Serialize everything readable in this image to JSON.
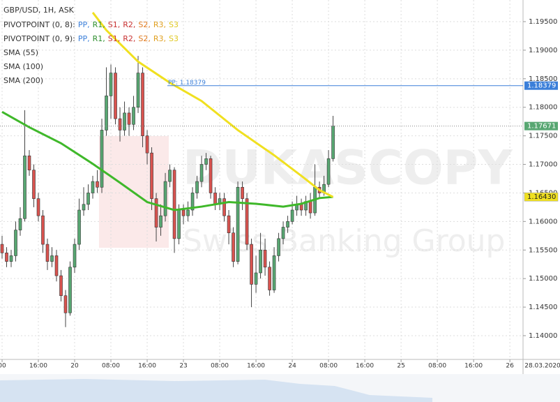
{
  "chart_data": {
    "type": "candlestick",
    "title": "GBP/USD, 1H, ASK",
    "indicators": [
      {
        "name": "PIVOTPOINT (0, 8):",
        "parts": [
          {
            "text": "PP,",
            "color": "#3b7fd9"
          },
          {
            "text": "R1,",
            "color": "#2f8f2f"
          },
          {
            "text": "S1,",
            "color": "#c83232"
          },
          {
            "text": "R2,",
            "color": "#c83232"
          },
          {
            "text": "S2,",
            "color": "#e07b20"
          },
          {
            "text": "R3,",
            "color": "#e0a020"
          },
          {
            "text": "S3",
            "color": "#e0c820"
          }
        ]
      },
      {
        "name": "PIVOTPOINT (0, 9):",
        "parts": [
          {
            "text": "PP,",
            "color": "#3b7fd9"
          },
          {
            "text": "R1,",
            "color": "#2f8f2f"
          },
          {
            "text": "S1,",
            "color": "#c83232"
          },
          {
            "text": "R2,",
            "color": "#c83232"
          },
          {
            "text": "S2,",
            "color": "#e07b20"
          },
          {
            "text": "R3,",
            "color": "#e0a020"
          },
          {
            "text": "S3",
            "color": "#e0c820"
          }
        ]
      }
    ],
    "watermark": [
      "DUKASCOPY",
      "Swiss Banking Group"
    ],
    "x": [
      0,
      1,
      2,
      3,
      4,
      5,
      6,
      7,
      8,
      9,
      10,
      11,
      12,
      13,
      14,
      15,
      16,
      17,
      18,
      19,
      20,
      21,
      22,
      23,
      24,
      25,
      26,
      27,
      28,
      29,
      30,
      31,
      32,
      33,
      34,
      35,
      36,
      37,
      38,
      39,
      40,
      41,
      42,
      43,
      44,
      45,
      46,
      47,
      48,
      49,
      50,
      51,
      52,
      53,
      54,
      55,
      56,
      57,
      58,
      59,
      60,
      61,
      62,
      63,
      64,
      65,
      66,
      67,
      68,
      69,
      70,
      71,
      72,
      73
    ],
    "open": [
      1.156,
      1.1545,
      1.153,
      1.154,
      1.1585,
      1.1605,
      1.1715,
      1.169,
      1.164,
      1.161,
      1.156,
      1.153,
      1.154,
      1.1505,
      1.147,
      1.144,
      1.152,
      1.156,
      1.162,
      1.163,
      1.165,
      1.167,
      1.166,
      1.176,
      1.182,
      1.186,
      1.178,
      1.176,
      1.179,
      1.177,
      1.18,
      1.186,
      1.175,
      1.172,
      1.164,
      1.159,
      1.161,
      1.167,
      1.169,
      1.157,
      1.162,
      1.161,
      1.162,
      1.165,
      1.167,
      1.17,
      1.171,
      1.165,
      1.163,
      1.164,
      1.161,
      1.158,
      1.153,
      1.166,
      1.164,
      1.156,
      1.149,
      1.151,
      1.155,
      1.152,
      1.148,
      1.154,
      1.157,
      1.159,
      1.16,
      1.162,
      1.163,
      1.162,
      1.1635,
      1.1615,
      1.166,
      1.165,
      1.1665,
      1.171
    ],
    "high": [
      1.1575,
      1.1555,
      1.155,
      1.16,
      1.1625,
      1.1795,
      1.1725,
      1.17,
      1.165,
      1.162,
      1.157,
      1.1555,
      1.155,
      1.1515,
      1.148,
      1.153,
      1.157,
      1.164,
      1.166,
      1.1665,
      1.168,
      1.169,
      1.178,
      1.187,
      1.1875,
      1.187,
      1.18,
      1.181,
      1.18,
      1.182,
      1.189,
      1.187,
      1.176,
      1.173,
      1.165,
      1.163,
      1.1685,
      1.17,
      1.1695,
      1.163,
      1.163,
      1.1635,
      1.166,
      1.168,
      1.1715,
      1.172,
      1.1715,
      1.166,
      1.165,
      1.165,
      1.162,
      1.159,
      1.167,
      1.167,
      1.165,
      1.157,
      1.154,
      1.158,
      1.157,
      1.153,
      1.1555,
      1.158,
      1.16,
      1.161,
      1.1635,
      1.1645,
      1.164,
      1.1645,
      1.165,
      1.17,
      1.167,
      1.168,
      1.1725,
      1.1785
    ],
    "low": [
      1.1535,
      1.152,
      1.152,
      1.153,
      1.1575,
      1.16,
      1.168,
      1.1625,
      1.16,
      1.1545,
      1.1515,
      1.152,
      1.1495,
      1.146,
      1.1415,
      1.1435,
      1.151,
      1.155,
      1.161,
      1.162,
      1.164,
      1.165,
      1.165,
      1.175,
      1.178,
      1.177,
      1.174,
      1.175,
      1.175,
      1.176,
      1.179,
      1.173,
      1.17,
      1.162,
      1.1565,
      1.1575,
      1.16,
      1.166,
      1.1545,
      1.156,
      1.1595,
      1.16,
      1.161,
      1.164,
      1.166,
      1.169,
      1.164,
      1.162,
      1.162,
      1.16,
      1.156,
      1.152,
      1.1525,
      1.162,
      1.155,
      1.145,
      1.1475,
      1.15,
      1.1505,
      1.147,
      1.1475,
      1.153,
      1.156,
      1.158,
      1.1595,
      1.161,
      1.161,
      1.161,
      1.1605,
      1.161,
      1.164,
      1.1645,
      1.166,
      1.1705
    ],
    "close": [
      1.1545,
      1.153,
      1.154,
      1.1585,
      1.1605,
      1.1715,
      1.169,
      1.164,
      1.161,
      1.156,
      1.153,
      1.154,
      1.1505,
      1.147,
      1.144,
      1.152,
      1.156,
      1.162,
      1.163,
      1.165,
      1.167,
      1.166,
      1.176,
      1.182,
      1.186,
      1.178,
      1.176,
      1.179,
      1.177,
      1.18,
      1.186,
      1.175,
      1.172,
      1.164,
      1.159,
      1.161,
      1.167,
      1.169,
      1.157,
      1.162,
      1.161,
      1.162,
      1.165,
      1.167,
      1.17,
      1.171,
      1.165,
      1.163,
      1.164,
      1.161,
      1.158,
      1.153,
      1.166,
      1.164,
      1.156,
      1.149,
      1.151,
      1.155,
      1.152,
      1.148,
      1.154,
      1.157,
      1.159,
      1.16,
      1.162,
      1.163,
      1.162,
      1.1635,
      1.1615,
      1.166,
      1.165,
      1.1665,
      1.171,
      1.17671
    ],
    "up_color": "#58a772",
    "down_color": "#d9534f",
    "series": [
      {
        "name": "SMA (55)",
        "color": "#3fb82a",
        "x": [
          0,
          6,
          13,
          20,
          26,
          32,
          38,
          44,
          50,
          56,
          62,
          66,
          70,
          73
        ],
        "values": [
          1.1792,
          1.1765,
          1.1737,
          1.1701,
          1.1668,
          1.1634,
          1.162,
          1.1626,
          1.1634,
          1.1631,
          1.1626,
          1.1631,
          1.1641,
          1.1643
        ]
      },
      {
        "name": "SMA (100)",
        "color": "#f0e020",
        "x": [
          20,
          23,
          30,
          37,
          44,
          52,
          60,
          66,
          70,
          73
        ],
        "values": [
          1.1966,
          1.1935,
          1.188,
          1.1843,
          1.1811,
          1.176,
          1.1716,
          1.168,
          1.1655,
          1.1643
        ]
      },
      {
        "name": "SMA (200)",
        "color": "#e03030",
        "x": [],
        "values": []
      }
    ],
    "pivot": {
      "value": 1.18379,
      "label": "PP: 1.18379"
    },
    "last_price": 1.17671,
    "sma_tag": {
      "value": 1.1643,
      "label": "1.16430"
    },
    "ylim": [
      1.13584,
      1.19879
    ],
    "yticks": [
      {
        "value": 1.14,
        "label": "1.14000"
      },
      {
        "value": 1.145,
        "label": "1.14500"
      },
      {
        "value": 1.15,
        "label": "1.15000"
      },
      {
        "value": 1.155,
        "label": "1.15500"
      },
      {
        "value": 1.16,
        "label": "1.16000"
      },
      {
        "value": 1.165,
        "label": "1.16500"
      },
      {
        "value": 1.17,
        "label": "1.17000"
      },
      {
        "value": 1.175,
        "label": "1.17500"
      },
      {
        "value": 1.18,
        "label": "1.18000"
      },
      {
        "value": 1.185,
        "label": "1.18500"
      },
      {
        "value": 1.19,
        "label": "1.19000"
      },
      {
        "value": 1.195,
        "label": "1.19500"
      }
    ],
    "xlim": [
      -0.46,
      114.9
    ],
    "xticks": [
      {
        "value": 0,
        "label": "00"
      },
      {
        "value": 8,
        "label": "16:00"
      },
      {
        "value": 16,
        "label": "20"
      },
      {
        "value": 24,
        "label": "08:00"
      },
      {
        "value": 32,
        "label": "16:00"
      },
      {
        "value": 40,
        "label": "23"
      },
      {
        "value": 48,
        "label": "08:00"
      },
      {
        "value": 56,
        "label": "16:00"
      },
      {
        "value": 64,
        "label": "24"
      },
      {
        "value": 72,
        "label": "08:00"
      },
      {
        "value": 80,
        "label": "16:00"
      },
      {
        "value": 88,
        "label": "25"
      },
      {
        "value": 96,
        "label": "08:00"
      },
      {
        "value": 104,
        "label": "16:00"
      },
      {
        "value": 112,
        "label": "26"
      }
    ],
    "date_label": "28.03.2020",
    "grid": true
  }
}
